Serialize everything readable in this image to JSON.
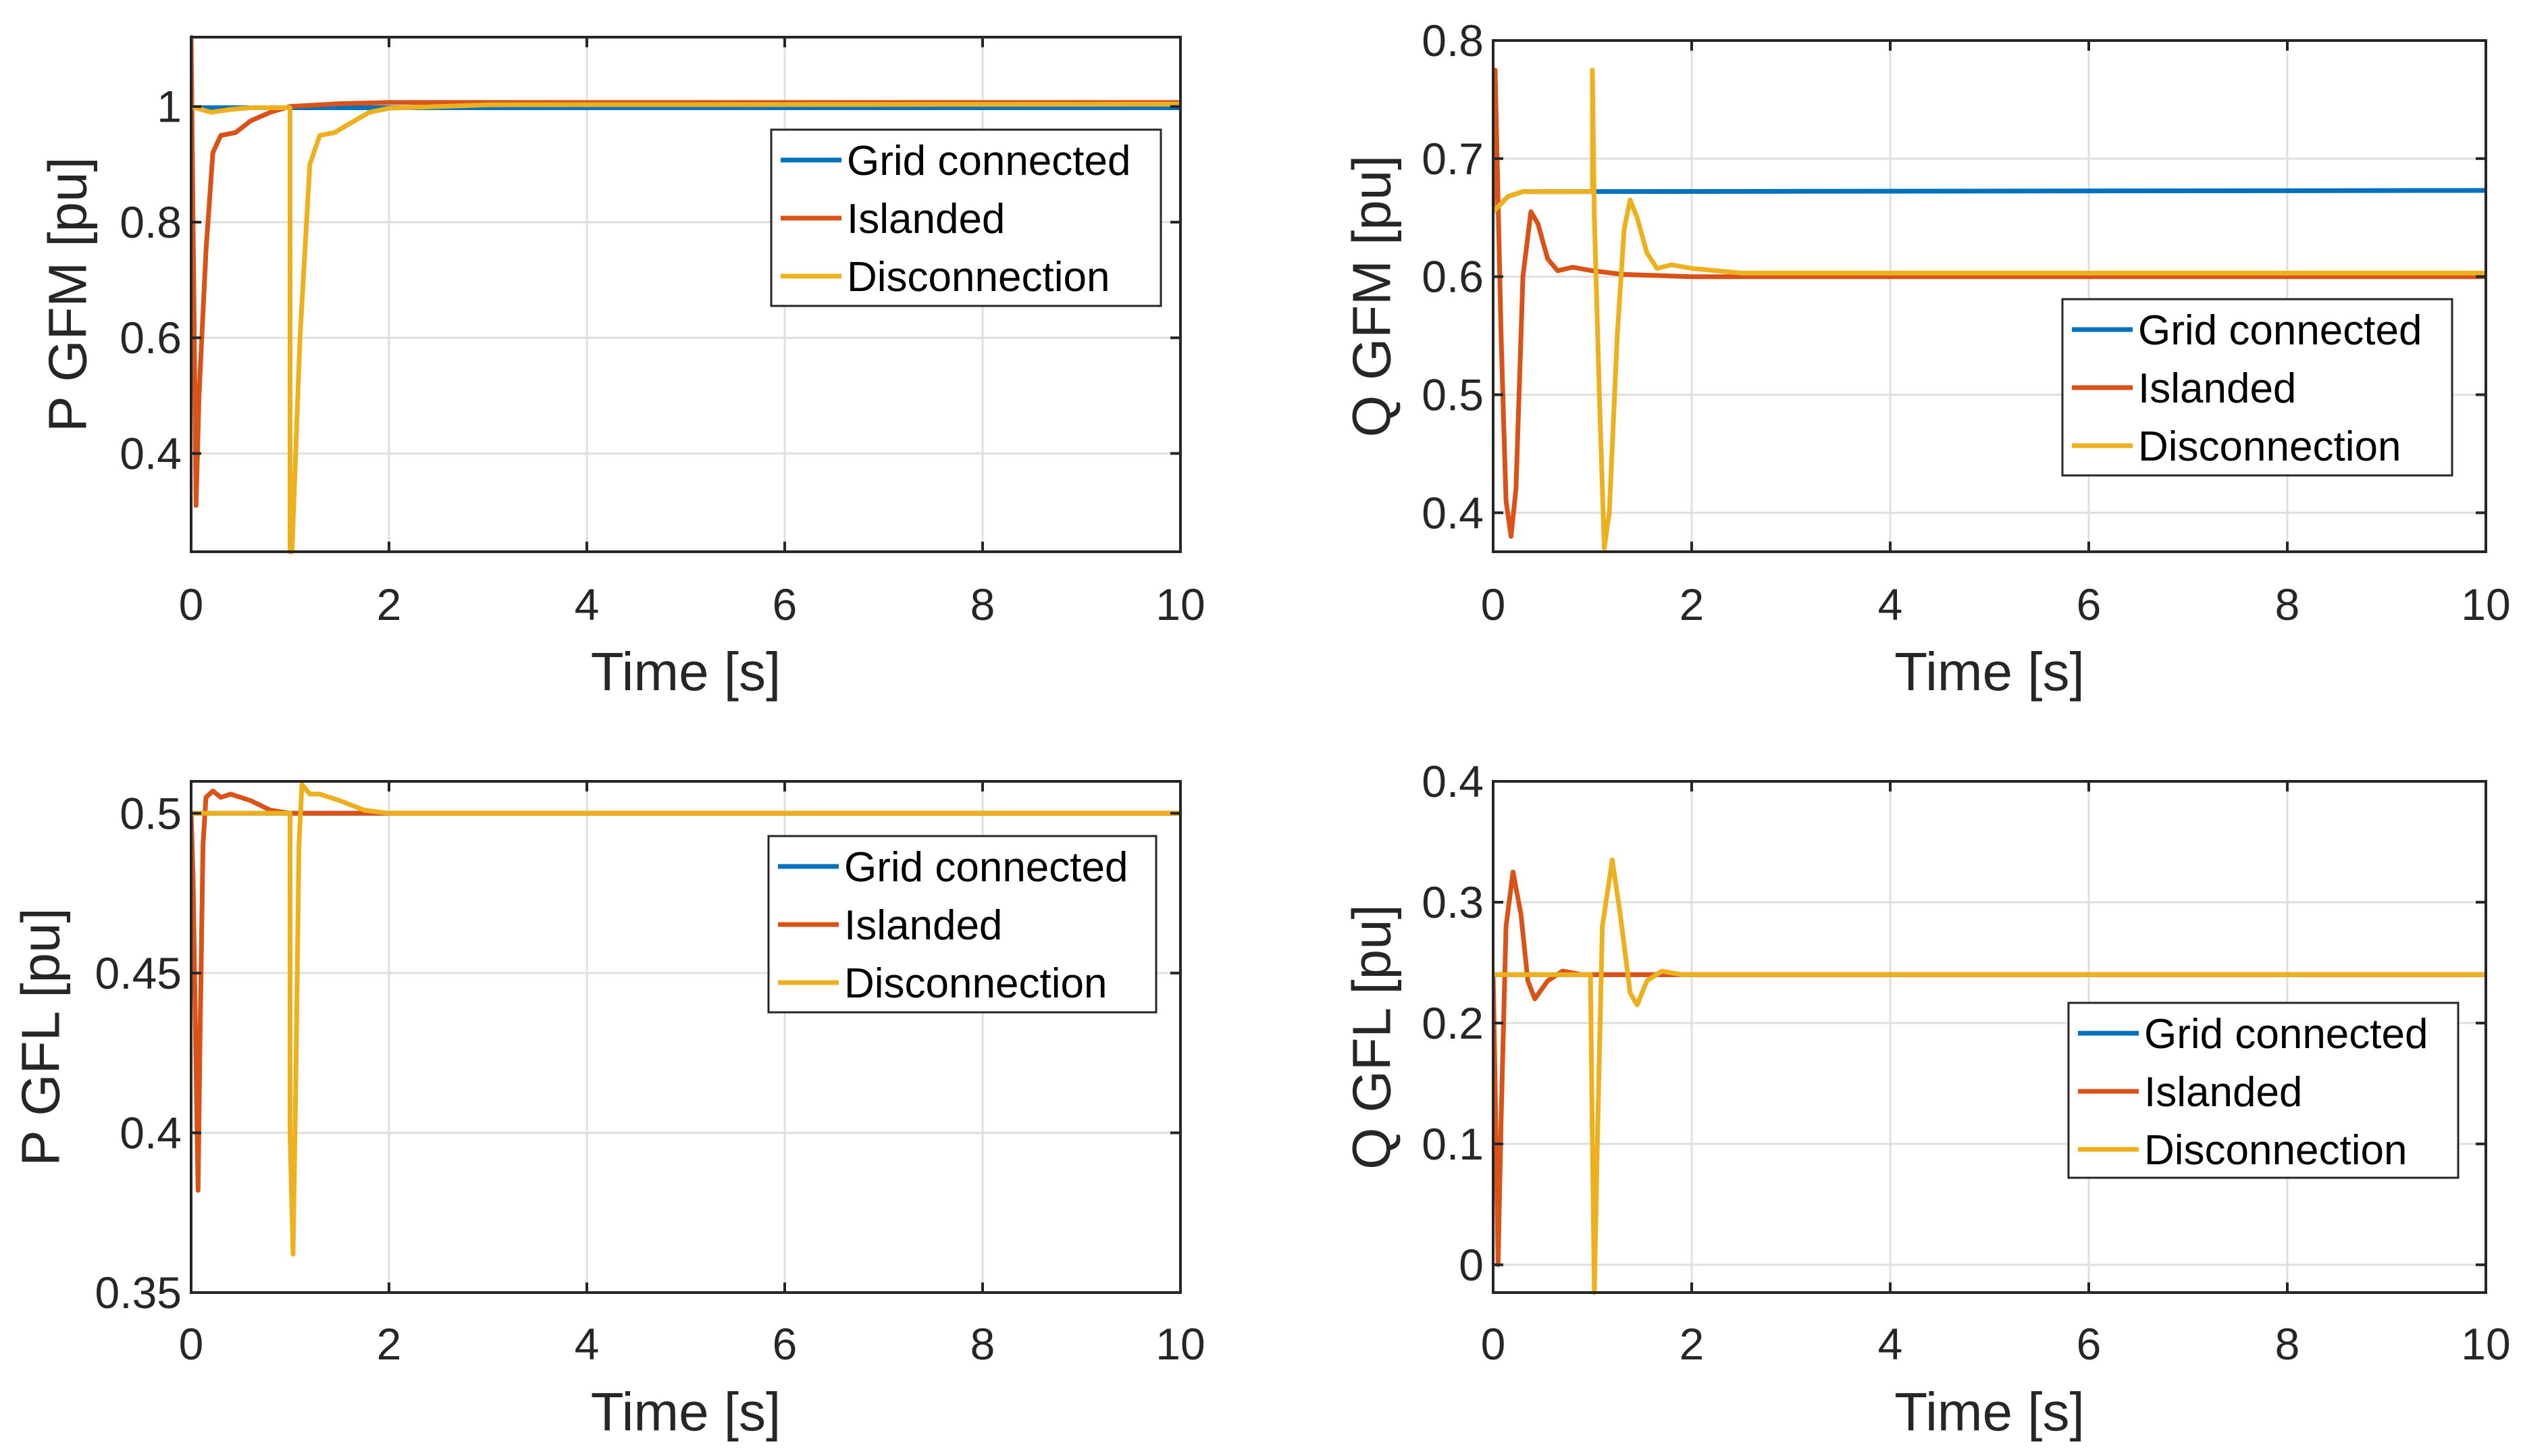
{
  "colors": {
    "grid_connected": "#0072BD",
    "islanded": "#D95319",
    "disconnection": "#EDB120"
  },
  "chart_data": [
    {
      "type": "line",
      "xlabel": "Time [s]",
      "ylabel": "P GFM [pu]",
      "xlim": [
        0,
        10
      ],
      "ylim": [
        0.23,
        1.12
      ],
      "xticks": [
        0,
        2,
        4,
        6,
        8,
        10
      ],
      "xtick_labels": [
        "0",
        "2",
        "4",
        "6",
        "8",
        "10"
      ],
      "yticks": [
        0.4,
        0.6,
        0.8,
        1
      ],
      "ytick_labels": [
        "0.4",
        "0.6",
        "0.8",
        "1"
      ],
      "grid": true,
      "legend_position": "top-right",
      "series": [
        {
          "name": "Grid connected",
          "color": "#0072BD",
          "points": [
            [
              0,
              0.998
            ],
            [
              10,
              0.998
            ]
          ]
        },
        {
          "name": "Islanded",
          "color": "#D95319",
          "points": [
            [
              0,
              1.12
            ],
            [
              0.02,
              0.8
            ],
            [
              0.05,
              0.31
            ],
            [
              0.08,
              0.5
            ],
            [
              0.15,
              0.75
            ],
            [
              0.22,
              0.92
            ],
            [
              0.3,
              0.95
            ],
            [
              0.45,
              0.955
            ],
            [
              0.6,
              0.975
            ],
            [
              0.8,
              0.99
            ],
            [
              1.0,
              1.0
            ],
            [
              1.5,
              1.005
            ],
            [
              2,
              1.007
            ],
            [
              10,
              1.007
            ]
          ]
        },
        {
          "name": "Disconnection",
          "color": "#EDB120",
          "points": [
            [
              0,
              1.0
            ],
            [
              0.1,
              0.995
            ],
            [
              0.2,
              0.99
            ],
            [
              0.4,
              0.995
            ],
            [
              0.6,
              0.998
            ],
            [
              1.0,
              0.998
            ],
            [
              1.0,
              0.23
            ],
            [
              1.02,
              0.23
            ],
            [
              1.1,
              0.6
            ],
            [
              1.2,
              0.9
            ],
            [
              1.3,
              0.95
            ],
            [
              1.45,
              0.955
            ],
            [
              1.6,
              0.97
            ],
            [
              1.8,
              0.99
            ],
            [
              2.0,
              0.997
            ],
            [
              3,
              1.003
            ],
            [
              10,
              1.004
            ]
          ]
        }
      ]
    },
    {
      "type": "line",
      "xlabel": "Time [s]",
      "ylabel": "Q GFM [pu]",
      "xlim": [
        0,
        10
      ],
      "ylim": [
        0.367,
        0.8
      ],
      "xticks": [
        0,
        2,
        4,
        6,
        8,
        10
      ],
      "xtick_labels": [
        "0",
        "2",
        "4",
        "6",
        "8",
        "10"
      ],
      "yticks": [
        0.4,
        0.5,
        0.6,
        0.7,
        0.8
      ],
      "ytick_labels": [
        "0.4",
        "0.5",
        "0.6",
        "0.7",
        "0.8"
      ],
      "grid": true,
      "legend_position": "right",
      "series": [
        {
          "name": "Grid connected",
          "color": "#0072BD",
          "points": [
            [
              0,
              0.655
            ],
            [
              0.15,
              0.668
            ],
            [
              0.3,
              0.672
            ],
            [
              10,
              0.673
            ]
          ]
        },
        {
          "name": "Islanded",
          "color": "#D95319",
          "points": [
            [
              0,
              0.66
            ],
            [
              0.02,
              0.775
            ],
            [
              0.04,
              0.7
            ],
            [
              0.08,
              0.55
            ],
            [
              0.13,
              0.41
            ],
            [
              0.18,
              0.38
            ],
            [
              0.23,
              0.42
            ],
            [
              0.3,
              0.6
            ],
            [
              0.38,
              0.655
            ],
            [
              0.45,
              0.645
            ],
            [
              0.55,
              0.615
            ],
            [
              0.65,
              0.605
            ],
            [
              0.8,
              0.608
            ],
            [
              1.0,
              0.605
            ],
            [
              1.3,
              0.602
            ],
            [
              2,
              0.6
            ],
            [
              10,
              0.6
            ]
          ]
        },
        {
          "name": "Disconnection",
          "color": "#EDB120",
          "points": [
            [
              0,
              0.655
            ],
            [
              0.15,
              0.668
            ],
            [
              0.3,
              0.672
            ],
            [
              1.0,
              0.672
            ],
            [
              1.0,
              0.775
            ],
            [
              1.02,
              0.65
            ],
            [
              1.07,
              0.5
            ],
            [
              1.12,
              0.37
            ],
            [
              1.17,
              0.4
            ],
            [
              1.25,
              0.55
            ],
            [
              1.32,
              0.64
            ],
            [
              1.38,
              0.665
            ],
            [
              1.45,
              0.65
            ],
            [
              1.55,
              0.62
            ],
            [
              1.65,
              0.607
            ],
            [
              1.8,
              0.61
            ],
            [
              2,
              0.607
            ],
            [
              2.5,
              0.603
            ],
            [
              10,
              0.603
            ]
          ]
        }
      ]
    },
    {
      "type": "line",
      "xlabel": "Time [s]",
      "ylabel": "P GFL [pu]",
      "xlim": [
        0,
        10
      ],
      "ylim": [
        0.35,
        0.51
      ],
      "xticks": [
        0,
        2,
        4,
        6,
        8,
        10
      ],
      "xtick_labels": [
        "0",
        "2",
        "4",
        "6",
        "8",
        "10"
      ],
      "yticks": [
        0.35,
        0.4,
        0.45,
        0.5
      ],
      "ytick_labels": [
        "0.35",
        "0.4",
        "0.45",
        "0.5"
      ],
      "grid": true,
      "legend_position": "top-right",
      "series": [
        {
          "name": "Grid connected",
          "color": "#0072BD",
          "points": [
            [
              0,
              0.5
            ],
            [
              10,
              0.5
            ]
          ]
        },
        {
          "name": "Islanded",
          "color": "#D95319",
          "points": [
            [
              0,
              0.5
            ],
            [
              0.02,
              0.48
            ],
            [
              0.05,
              0.42
            ],
            [
              0.07,
              0.382
            ],
            [
              0.09,
              0.43
            ],
            [
              0.12,
              0.49
            ],
            [
              0.15,
              0.505
            ],
            [
              0.22,
              0.507
            ],
            [
              0.3,
              0.505
            ],
            [
              0.4,
              0.506
            ],
            [
              0.6,
              0.504
            ],
            [
              0.8,
              0.501
            ],
            [
              1.0,
              0.5
            ],
            [
              10,
              0.5
            ]
          ]
        },
        {
          "name": "Disconnection",
          "color": "#EDB120",
          "points": [
            [
              0,
              0.5
            ],
            [
              1.0,
              0.5
            ],
            [
              1.0,
              0.4
            ],
            [
              1.03,
              0.362
            ],
            [
              1.06,
              0.42
            ],
            [
              1.09,
              0.49
            ],
            [
              1.12,
              0.509
            ],
            [
              1.2,
              0.506
            ],
            [
              1.3,
              0.506
            ],
            [
              1.5,
              0.504
            ],
            [
              1.75,
              0.501
            ],
            [
              2,
              0.5
            ],
            [
              10,
              0.5
            ]
          ]
        }
      ]
    },
    {
      "type": "line",
      "xlabel": "Time [s]",
      "ylabel": "Q GFL [pu]",
      "xlim": [
        0,
        10
      ],
      "ylim": [
        -0.023,
        0.4
      ],
      "xticks": [
        0,
        2,
        4,
        6,
        8,
        10
      ],
      "xtick_labels": [
        "0",
        "2",
        "4",
        "6",
        "8",
        "10"
      ],
      "yticks": [
        0,
        0.1,
        0.2,
        0.3,
        0.4
      ],
      "ytick_labels": [
        "0",
        "0.1",
        "0.2",
        "0.3",
        "0.4"
      ],
      "grid": true,
      "legend_position": "bottom-right",
      "series": [
        {
          "name": "Grid connected",
          "color": "#0072BD",
          "points": [
            [
              0,
              0.24
            ],
            [
              10,
              0.24
            ]
          ]
        },
        {
          "name": "Islanded",
          "color": "#D95319",
          "points": [
            [
              0,
              0.24
            ],
            [
              0.02,
              0.15
            ],
            [
              0.05,
              0.0
            ],
            [
              0.08,
              0.12
            ],
            [
              0.13,
              0.28
            ],
            [
              0.2,
              0.325
            ],
            [
              0.28,
              0.29
            ],
            [
              0.35,
              0.235
            ],
            [
              0.42,
              0.22
            ],
            [
              0.55,
              0.235
            ],
            [
              0.7,
              0.243
            ],
            [
              0.9,
              0.24
            ],
            [
              10,
              0.24
            ]
          ]
        },
        {
          "name": "Disconnection",
          "color": "#EDB120",
          "points": [
            [
              0,
              0.24
            ],
            [
              0.98,
              0.24
            ],
            [
              1.0,
              0.1
            ],
            [
              1.02,
              -0.023
            ],
            [
              1.05,
              0.1
            ],
            [
              1.1,
              0.28
            ],
            [
              1.2,
              0.335
            ],
            [
              1.28,
              0.29
            ],
            [
              1.38,
              0.225
            ],
            [
              1.45,
              0.215
            ],
            [
              1.55,
              0.235
            ],
            [
              1.7,
              0.243
            ],
            [
              1.9,
              0.24
            ],
            [
              10,
              0.24
            ]
          ]
        }
      ]
    }
  ]
}
